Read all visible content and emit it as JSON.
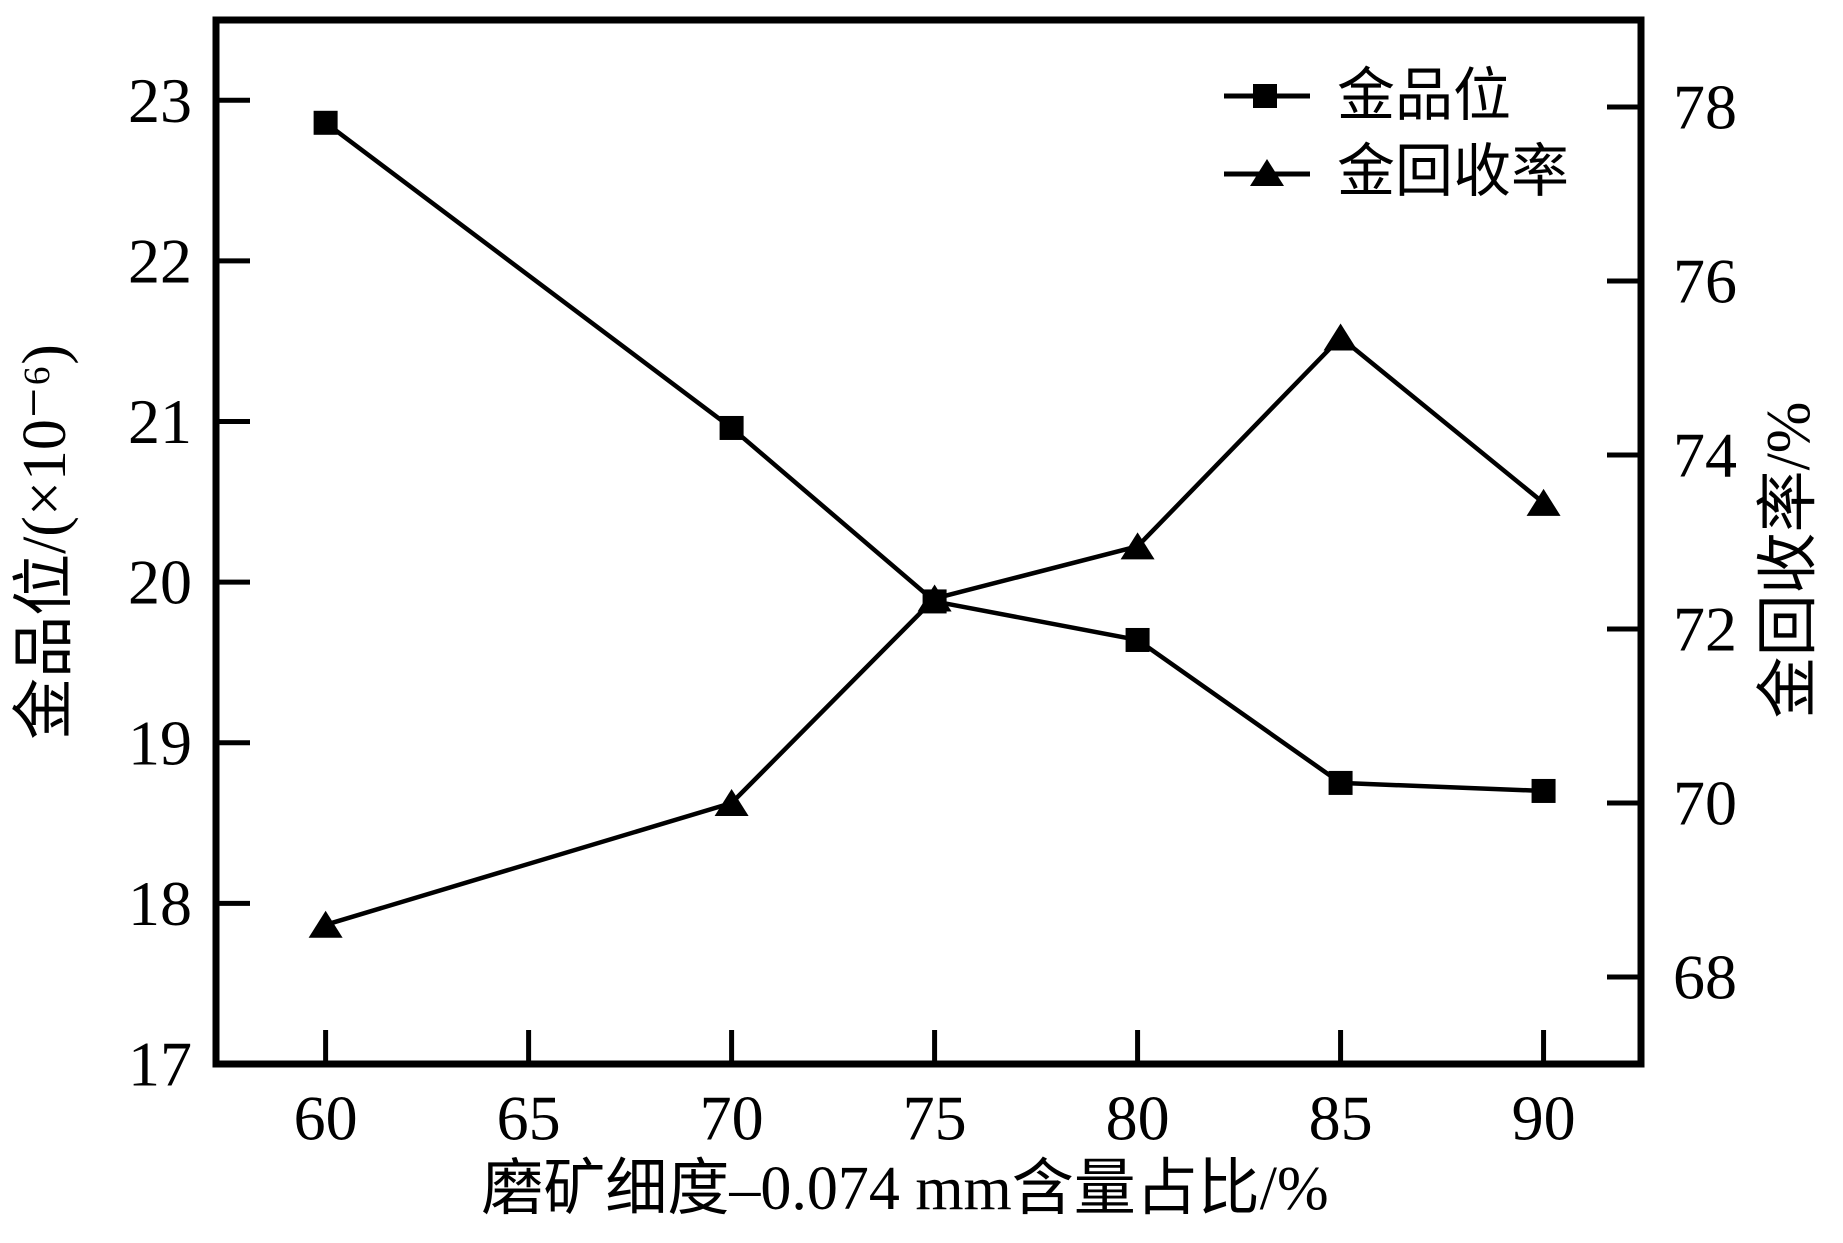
{
  "figure": {
    "background": "#ffffff",
    "line_color": "#000000"
  },
  "chart_data": {
    "type": "line",
    "title": "",
    "xlabel": "磨矿细度–0.074 mm含量占比/%",
    "ylabel_left": "金品位/(×10⁻⁶)",
    "ylabel_right": "金回收率/%",
    "x": [
      60,
      70,
      75,
      80,
      85,
      90
    ],
    "series": [
      {
        "name": "金品位",
        "axis": "left",
        "marker": "square",
        "values": [
          22.86,
          20.96,
          19.88,
          19.64,
          18.75,
          18.7
        ]
      },
      {
        "name": "金回收率",
        "axis": "right",
        "marker": "triangle",
        "values": [
          68.6,
          70.0,
          72.35,
          72.95,
          75.35,
          73.45
        ]
      }
    ],
    "x_ticks": [
      60,
      65,
      70,
      75,
      80,
      85,
      90
    ],
    "left_ticks": [
      17,
      18,
      19,
      20,
      21,
      22,
      23
    ],
    "right_ticks": [
      68,
      70,
      72,
      74,
      76,
      78
    ],
    "x_range": [
      57.3,
      92.4
    ],
    "left_range": [
      17,
      23.5
    ],
    "right_range": [
      67,
      79
    ],
    "grid": false,
    "legend_position": "top-right"
  }
}
